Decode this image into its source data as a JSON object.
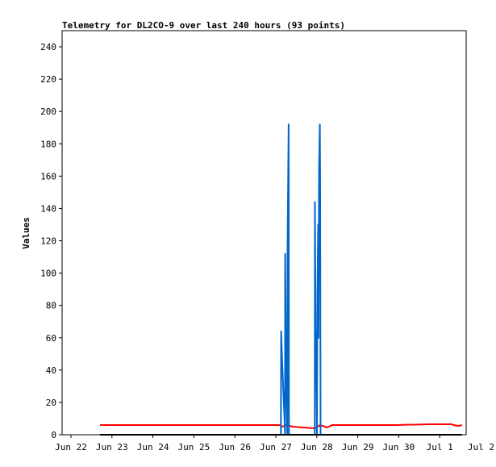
{
  "chart_data": {
    "type": "line",
    "title": "Telemetry for DL2CO-9 over last 240 hours (93 points)",
    "xlabel": "",
    "ylabel": "Values",
    "xlim": [
      0,
      240
    ],
    "ylim": [
      0,
      250
    ],
    "y_ticks": [
      0,
      20,
      40,
      60,
      80,
      100,
      120,
      140,
      160,
      180,
      200,
      220,
      240
    ],
    "x_ticks": [
      {
        "t": 0,
        "label": "Jun 22"
      },
      {
        "t": 24,
        "label": "Jun 23"
      },
      {
        "t": 48,
        "label": "Jun 24"
      },
      {
        "t": 72,
        "label": "Jun 25"
      },
      {
        "t": 96,
        "label": "Jun 26"
      },
      {
        "t": 120,
        "label": "Jun 27"
      },
      {
        "t": 144,
        "label": "Jun 28"
      },
      {
        "t": 168,
        "label": "Jun 29"
      },
      {
        "t": 192,
        "label": "Jun 30"
      },
      {
        "t": 216,
        "label": "Jul 1"
      },
      {
        "t": 240,
        "label": "Jul 2"
      }
    ],
    "grid": false,
    "legend": "none",
    "series": [
      {
        "color": "#ff0000",
        "points": [
          [
            17,
            6
          ],
          [
            40,
            6
          ],
          [
            70,
            6
          ],
          [
            100,
            6
          ],
          [
            122,
            6
          ],
          [
            124,
            5
          ],
          [
            126,
            6
          ],
          [
            130,
            5
          ],
          [
            136,
            4.5
          ],
          [
            143,
            4
          ],
          [
            146,
            6
          ],
          [
            150,
            4.5
          ],
          [
            153,
            6
          ],
          [
            170,
            6
          ],
          [
            190,
            6
          ],
          [
            210,
            6.5
          ],
          [
            223,
            6.5
          ],
          [
            224,
            6
          ],
          [
            227,
            5.5
          ],
          [
            229,
            6
          ]
        ]
      },
      {
        "color": "#0066cc",
        "points": [
          [
            123,
            0
          ],
          [
            123.1,
            64
          ],
          [
            123.5,
            52
          ],
          [
            123.9,
            40
          ],
          [
            124.3,
            30
          ],
          [
            124.7,
            20
          ],
          [
            125.1,
            10
          ],
          [
            125.4,
            0
          ],
          [
            125.5,
            112
          ],
          [
            125.9,
            60
          ],
          [
            126.3,
            25
          ],
          [
            126.7,
            0
          ],
          [
            126.9,
            120
          ],
          [
            127.3,
            170
          ],
          [
            127.5,
            192
          ],
          [
            127.7,
            0
          ],
          [
            142.8,
            0
          ],
          [
            142.9,
            144
          ],
          [
            143.3,
            65
          ],
          [
            143.6,
            48
          ],
          [
            143.9,
            20
          ],
          [
            144.1,
            0
          ],
          [
            144.4,
            88
          ],
          [
            144.8,
            130
          ],
          [
            145.0,
            60
          ],
          [
            145.3,
            164
          ],
          [
            145.6,
            182
          ],
          [
            145.8,
            192
          ],
          [
            146.0,
            150
          ],
          [
            146.2,
            0
          ]
        ]
      },
      {
        "color": "#000000",
        "points": [
          [
            17,
            0
          ],
          [
            229,
            0
          ]
        ]
      }
    ]
  }
}
